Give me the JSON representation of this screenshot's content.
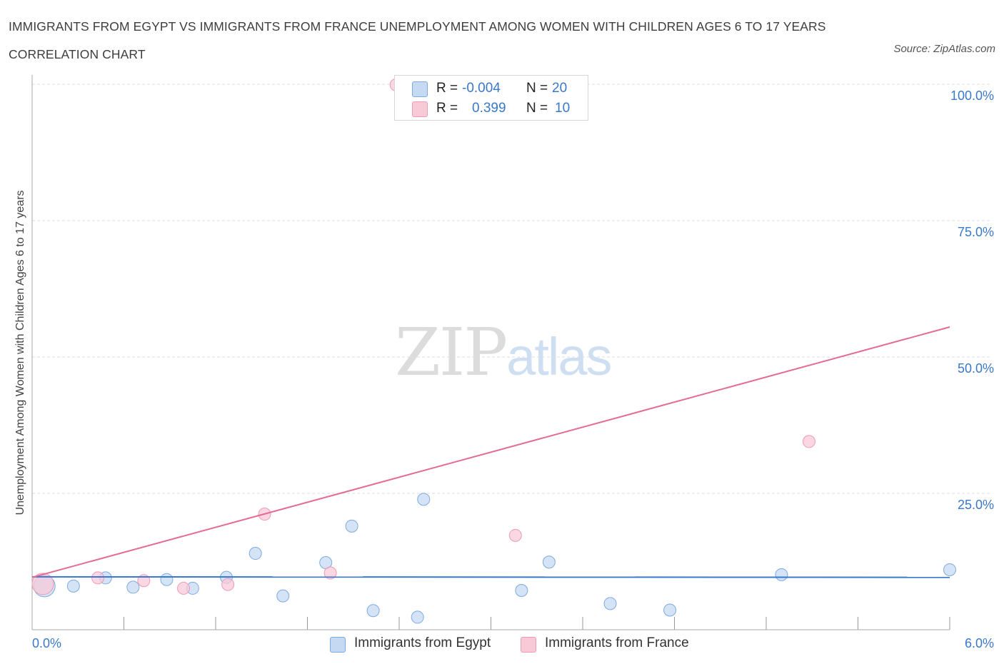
{
  "title": "IMMIGRANTS FROM EGYPT VS IMMIGRANTS FROM FRANCE UNEMPLOYMENT AMONG WOMEN WITH CHILDREN AGES 6 TO 17 YEARS CORRELATION CHART",
  "source": "Source: ZipAtlas.com",
  "watermark": {
    "zip": "ZIP",
    "atlas": "atlas"
  },
  "colors": {
    "egypt_fill": "#c5d9f3",
    "egypt_stroke": "#7faae0",
    "egypt_line": "#3b78cf",
    "france_fill": "#f8cad8",
    "france_stroke": "#ee9ab4",
    "france_line": "#e36b95",
    "axis_tick": "#3a78c9",
    "grid": "#dddddd"
  },
  "legend": {
    "egypt": {
      "r_label": "R =",
      "r_value": "-0.004",
      "n_label": "N =",
      "n_value": "20"
    },
    "france": {
      "r_label": "R =",
      "r_value": "0.399",
      "n_label": "N =",
      "n_value": "10"
    }
  },
  "chart_data": {
    "type": "scatter",
    "title": "IMMIGRANTS FROM EGYPT VS IMMIGRANTS FROM FRANCE UNEMPLOYMENT AMONG WOMEN WITH CHILDREN AGES 6 TO 17 YEARS CORRELATION CHART",
    "xlabel": "",
    "ylabel": "Unemployment Among Women with Children Ages 6 to 17 years",
    "xlim": [
      0,
      6
    ],
    "ylim": [
      0,
      100
    ],
    "x_tick_labels": [
      "0.0%",
      "6.0%"
    ],
    "y_ticks": [
      25,
      50,
      75,
      100
    ],
    "y_tick_labels": [
      "25.0%",
      "50.0%",
      "75.0%",
      "100.0%"
    ],
    "grid": true,
    "legend_position": "top-center",
    "series": [
      {
        "name": "Immigrants from Egypt",
        "points": [
          {
            "x": 0.08,
            "y": 8.0,
            "big": true
          },
          {
            "x": 0.27,
            "y": 8.0
          },
          {
            "x": 0.48,
            "y": 9.5
          },
          {
            "x": 0.66,
            "y": 7.8
          },
          {
            "x": 0.88,
            "y": 9.2
          },
          {
            "x": 1.05,
            "y": 7.6
          },
          {
            "x": 1.27,
            "y": 9.6
          },
          {
            "x": 1.46,
            "y": 14.0
          },
          {
            "x": 1.64,
            "y": 6.2
          },
          {
            "x": 1.92,
            "y": 12.3
          },
          {
            "x": 2.09,
            "y": 19.0
          },
          {
            "x": 2.23,
            "y": 3.5
          },
          {
            "x": 2.52,
            "y": 2.3
          },
          {
            "x": 2.56,
            "y": 23.9
          },
          {
            "x": 3.2,
            "y": 7.2
          },
          {
            "x": 3.38,
            "y": 12.4
          },
          {
            "x": 3.78,
            "y": 4.8
          },
          {
            "x": 4.17,
            "y": 3.6
          },
          {
            "x": 4.9,
            "y": 10.1
          },
          {
            "x": 6.0,
            "y": 11.0
          }
        ],
        "trend": {
          "x0": 0.0,
          "y0": 9.7,
          "x1": 6.0,
          "y1": 9.6
        }
      },
      {
        "name": "Immigrants from France",
        "points": [
          {
            "x": 0.07,
            "y": 8.4,
            "big": true
          },
          {
            "x": 0.43,
            "y": 9.5
          },
          {
            "x": 0.73,
            "y": 9.0
          },
          {
            "x": 0.99,
            "y": 7.6
          },
          {
            "x": 1.28,
            "y": 8.3
          },
          {
            "x": 1.52,
            "y": 21.2
          },
          {
            "x": 1.95,
            "y": 10.4
          },
          {
            "x": 2.38,
            "y": 99.9
          },
          {
            "x": 3.16,
            "y": 17.3
          },
          {
            "x": 5.08,
            "y": 34.5
          }
        ],
        "trend": {
          "x0": 0.0,
          "y0": 9.6,
          "x1": 6.0,
          "y1": 55.5
        }
      }
    ]
  }
}
